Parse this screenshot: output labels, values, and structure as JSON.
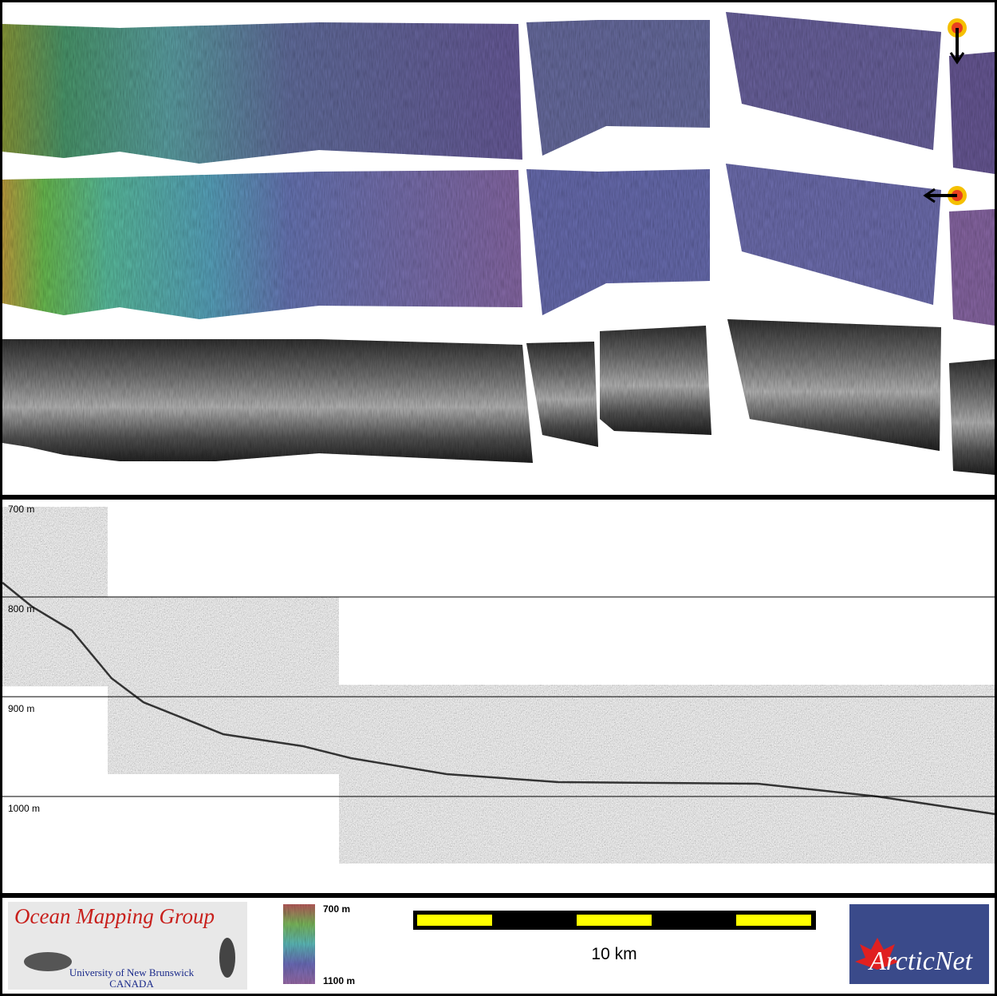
{
  "profile": {
    "depth_labels": [
      "700 m",
      "800 m",
      "900 m",
      "1000 m"
    ]
  },
  "footer": {
    "group": {
      "title": "Ocean Mapping Group",
      "university": "University of New Brunswick",
      "country": "CANADA"
    },
    "colorbar": {
      "top_label": "700 m",
      "bottom_label": "1100 m"
    },
    "scale_bar": {
      "label": "10 km"
    },
    "partner": {
      "name": "ArcticNet"
    }
  }
}
